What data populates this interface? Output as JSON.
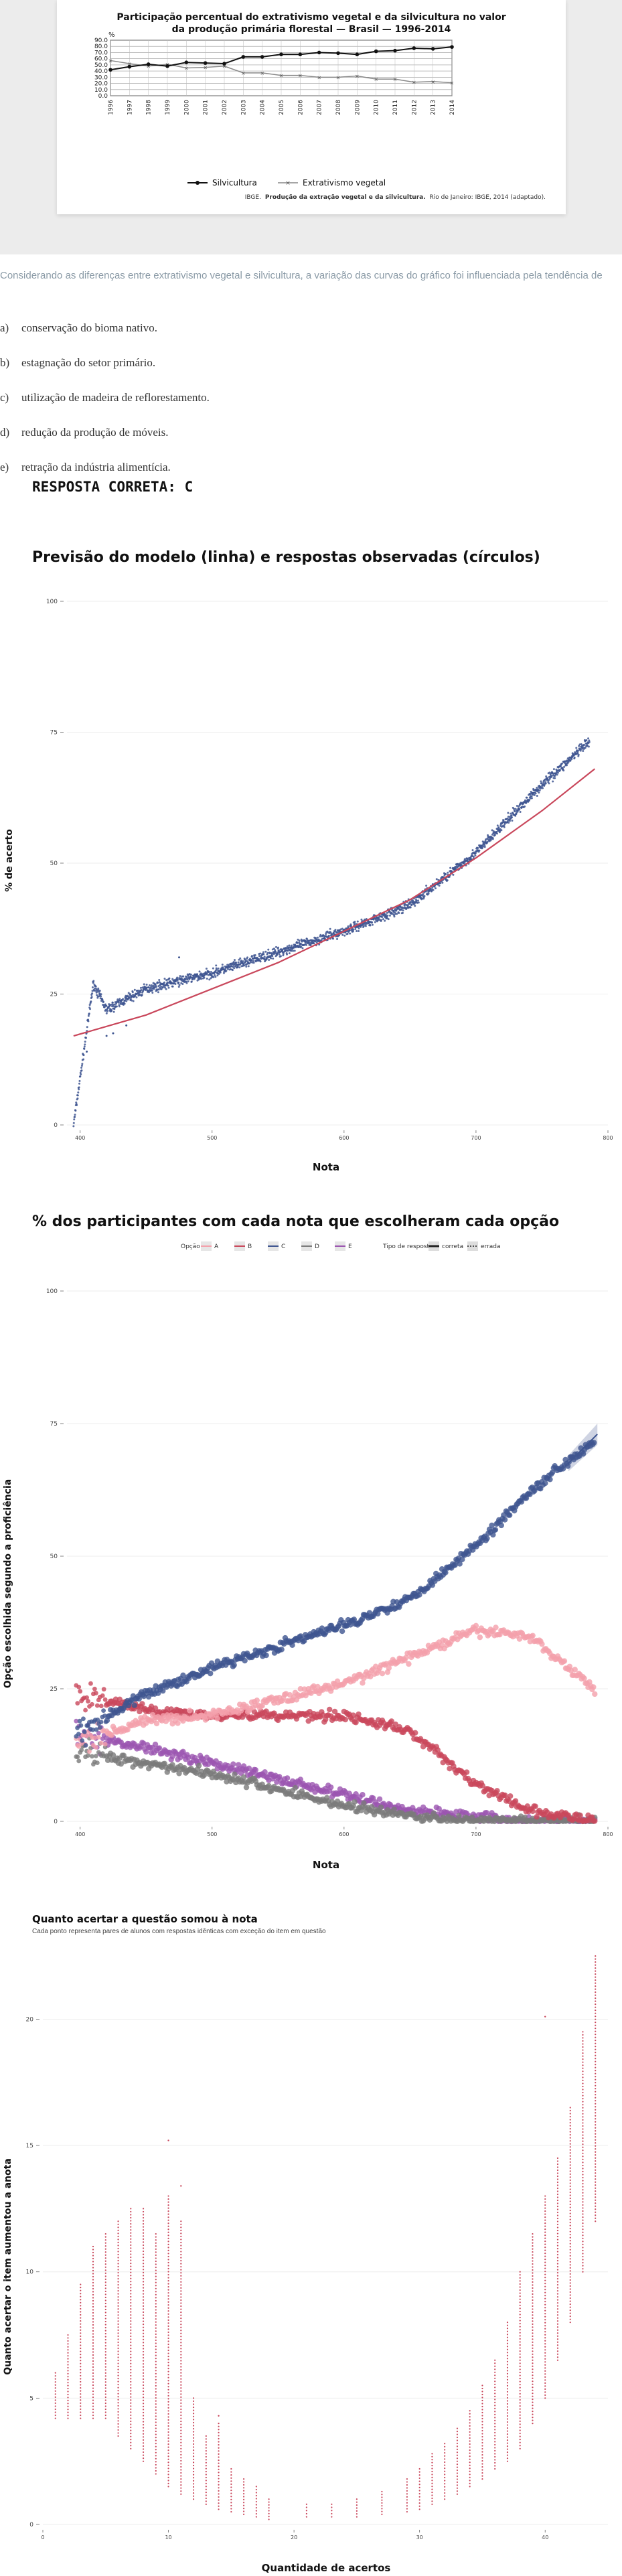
{
  "figure": {
    "title_line1": "Participação percentual do extrativismo vegetal e da silvicultura no valor",
    "title_line2": "da produção primária florestal — Brasil — 1996-2014",
    "y_unit": "%",
    "legend_silvicultura": "Silvicultura",
    "legend_extrativismo": "Extrativismo vegetal",
    "source_prefix": "IBGE.",
    "source_bold": "Produção da extração vegetal e da silvicultura.",
    "source_suffix": "Rio de Janeiro: IBGE, 2014 (adaptado)."
  },
  "question": {
    "text": "Considerando as diferenças entre extrativismo vegetal e silvicultura, a variação das curvas do gráfico foi influenciada pela tendência de",
    "options": [
      {
        "letter": "a)",
        "text": "conservação do bioma nativo."
      },
      {
        "letter": "b)",
        "text": "estagnação do setor primário."
      },
      {
        "letter": "c)",
        "text": "utilização de madeira de reflorestamento."
      },
      {
        "letter": "d)",
        "text": "redução da produção de móveis."
      },
      {
        "letter": "e)",
        "text": "retração da indústria alimentícia."
      }
    ],
    "answer": "RESPOSTA CORRETA: C"
  },
  "chart1": {
    "title": "Previsão do modelo (linha) e respostas observadas (círculos)",
    "xlabel": "Nota",
    "ylabel": "% de acerto"
  },
  "chart2": {
    "title": "% dos participantes com cada nota que escolheram cada opção",
    "legend_option_title": "Opção",
    "legend_type_title": "Tipo de resposta",
    "legend_correct": "correta",
    "legend_wrong": "errada",
    "xlabel": "Nota",
    "ylabel": "Opção escolhida segundo a proficiência"
  },
  "chart3": {
    "title": "Quanto acertar a questão somou à nota",
    "subtitle": "Cada ponto representa pares de alunos com respostas idênticas com exceção do item em questão",
    "xlabel": "Quantidade de acertos",
    "ylabel": "Quanto acertar o item aumentou a anota"
  },
  "colors": {
    "navy": "#3e5590",
    "red": "#c9475b",
    "pink": "#f4a0ab",
    "purple": "#9b55b0",
    "gray": "#7a7a7a",
    "muted_text": "#8a9aa6"
  },
  "chart_data": [
    {
      "type": "line",
      "title": "Participação percentual do extrativismo vegetal e da silvicultura no valor da produção primária florestal — Brasil — 1996-2014",
      "x": [
        1996,
        1997,
        1998,
        1999,
        2000,
        2001,
        2002,
        2003,
        2004,
        2005,
        2006,
        2007,
        2008,
        2009,
        2010,
        2011,
        2012,
        2013,
        2014
      ],
      "series": [
        {
          "name": "Silvicultura",
          "values": [
            42,
            47,
            51,
            48,
            54,
            53,
            52,
            63,
            63,
            67,
            67,
            70,
            69,
            67,
            72,
            73,
            77,
            76,
            79
          ]
        },
        {
          "name": "Extrativismo vegetal",
          "values": [
            57,
            52,
            48,
            51,
            45,
            46,
            48,
            37,
            37,
            33,
            33,
            30,
            30,
            32,
            27,
            27,
            22,
            23,
            21
          ]
        }
      ],
      "y_ticks": [
        0,
        10,
        20,
        30,
        40,
        50,
        60,
        70,
        80,
        90
      ],
      "ylim": [
        0,
        90
      ]
    },
    {
      "type": "scatter",
      "title": "Previsão do modelo (linha) e respostas observadas (círculos)",
      "xlabel": "Nota",
      "ylabel": "% de acerto",
      "xlim": [
        390,
        800
      ],
      "ylim": [
        0,
        100
      ],
      "x_ticks": [
        400,
        500,
        600,
        700,
        800
      ],
      "y_ticks": [
        0,
        25,
        50,
        75,
        100
      ],
      "observed_trend": {
        "x": [
          395,
          405,
          410,
          420,
          450,
          500,
          550,
          600,
          650,
          700,
          750,
          785
        ],
        "y": [
          0,
          18,
          27,
          22,
          26,
          29,
          33,
          37,
          42,
          52,
          65,
          73
        ]
      },
      "model_line": {
        "x": [
          395,
          450,
          500,
          550,
          600,
          650,
          700,
          750,
          790
        ],
        "y": [
          17,
          21,
          26,
          31,
          37,
          43,
          51,
          60,
          68
        ]
      }
    },
    {
      "type": "scatter",
      "title": "% dos participantes com cada nota que escolheram cada opção",
      "xlabel": "Nota",
      "ylabel": "Opção escolhida segundo a proficiência",
      "xlim": [
        390,
        800
      ],
      "ylim": [
        0,
        100
      ],
      "x_ticks": [
        400,
        500,
        600,
        700,
        800
      ],
      "y_ticks": [
        0,
        25,
        50,
        75,
        100
      ],
      "series": [
        {
          "name": "A",
          "x": [
            400,
            450,
            500,
            550,
            600,
            650,
            700,
            740,
            790
          ],
          "values": [
            15,
            19,
            20,
            23,
            26,
            31,
            36,
            35,
            25
          ]
        },
        {
          "name": "B",
          "x": [
            400,
            450,
            500,
            550,
            600,
            650,
            700,
            740,
            790
          ],
          "values": [
            24,
            21,
            20,
            20,
            20,
            17,
            7,
            2,
            0
          ]
        },
        {
          "name": "C",
          "x": [
            400,
            450,
            500,
            550,
            600,
            650,
            700,
            740,
            790
          ],
          "values": [
            17,
            24,
            29,
            33,
            37,
            42,
            52,
            62,
            72
          ]
        },
        {
          "name": "D",
          "x": [
            400,
            450,
            500,
            550,
            600,
            650,
            700,
            740,
            790
          ],
          "values": [
            13,
            11,
            9,
            6,
            3,
            1,
            0,
            0,
            0
          ]
        },
        {
          "name": "E",
          "x": [
            400,
            450,
            500,
            550,
            600,
            650,
            700,
            740,
            790
          ],
          "values": [
            16,
            14,
            11,
            8,
            5,
            2,
            1,
            0,
            0
          ]
        }
      ]
    },
    {
      "type": "scatter",
      "title": "Quanto acertar a questão somou à nota",
      "xlabel": "Quantidade de acertos",
      "ylabel": "Quanto acertar o item aumentou a anota",
      "xlim": [
        0,
        45
      ],
      "ylim": [
        0,
        22
      ],
      "x_ticks": [
        0,
        10,
        20,
        30,
        40
      ],
      "y_ticks": [
        0,
        5,
        10,
        15,
        20
      ],
      "column_ranges": [
        {
          "x": 1,
          "min": 4.2,
          "max": 6.0
        },
        {
          "x": 2,
          "min": 4.2,
          "max": 7.5
        },
        {
          "x": 3,
          "min": 4.2,
          "max": 9.5
        },
        {
          "x": 4,
          "min": 4.2,
          "max": 11.0
        },
        {
          "x": 5,
          "min": 4.2,
          "max": 11.5
        },
        {
          "x": 6,
          "min": 3.5,
          "max": 12.0
        },
        {
          "x": 7,
          "min": 3.0,
          "max": 12.5
        },
        {
          "x": 8,
          "min": 2.5,
          "max": 12.5
        },
        {
          "x": 9,
          "min": 2.0,
          "max": 11.5
        },
        {
          "x": 10,
          "min": 1.5,
          "max": 13.0
        },
        {
          "x": 11,
          "min": 1.2,
          "max": 12.0
        },
        {
          "x": 12,
          "min": 1.0,
          "max": 5.0
        },
        {
          "x": 13,
          "min": 0.8,
          "max": 3.5
        },
        {
          "x": 14,
          "min": 0.6,
          "max": 4.0
        },
        {
          "x": 15,
          "min": 0.5,
          "max": 2.2
        },
        {
          "x": 16,
          "min": 0.4,
          "max": 1.8
        },
        {
          "x": 17,
          "min": 0.3,
          "max": 1.5
        },
        {
          "x": 18,
          "min": 0.2,
          "max": 1.0
        },
        {
          "x": 21,
          "min": 0.3,
          "max": 0.8
        },
        {
          "x": 23,
          "min": 0.3,
          "max": 0.8
        },
        {
          "x": 25,
          "min": 0.3,
          "max": 1.0
        },
        {
          "x": 27,
          "min": 0.4,
          "max": 1.3
        },
        {
          "x": 29,
          "min": 0.5,
          "max": 1.8
        },
        {
          "x": 30,
          "min": 0.6,
          "max": 2.2
        },
        {
          "x": 31,
          "min": 0.8,
          "max": 2.8
        },
        {
          "x": 32,
          "min": 1.0,
          "max": 3.2
        },
        {
          "x": 33,
          "min": 1.2,
          "max": 3.8
        },
        {
          "x": 34,
          "min": 1.5,
          "max": 4.5
        },
        {
          "x": 35,
          "min": 1.8,
          "max": 5.5
        },
        {
          "x": 36,
          "min": 2.2,
          "max": 6.5
        },
        {
          "x": 37,
          "min": 2.5,
          "max": 8.0
        },
        {
          "x": 38,
          "min": 3.0,
          "max": 10.0
        },
        {
          "x": 39,
          "min": 4.0,
          "max": 11.5
        },
        {
          "x": 40,
          "min": 5.0,
          "max": 13.0
        },
        {
          "x": 41,
          "min": 6.5,
          "max": 14.5
        },
        {
          "x": 42,
          "min": 8.0,
          "max": 16.5
        },
        {
          "x": 43,
          "min": 10.0,
          "max": 19.5
        },
        {
          "x": 44,
          "min": 12.0,
          "max": 22.5
        }
      ]
    }
  ]
}
